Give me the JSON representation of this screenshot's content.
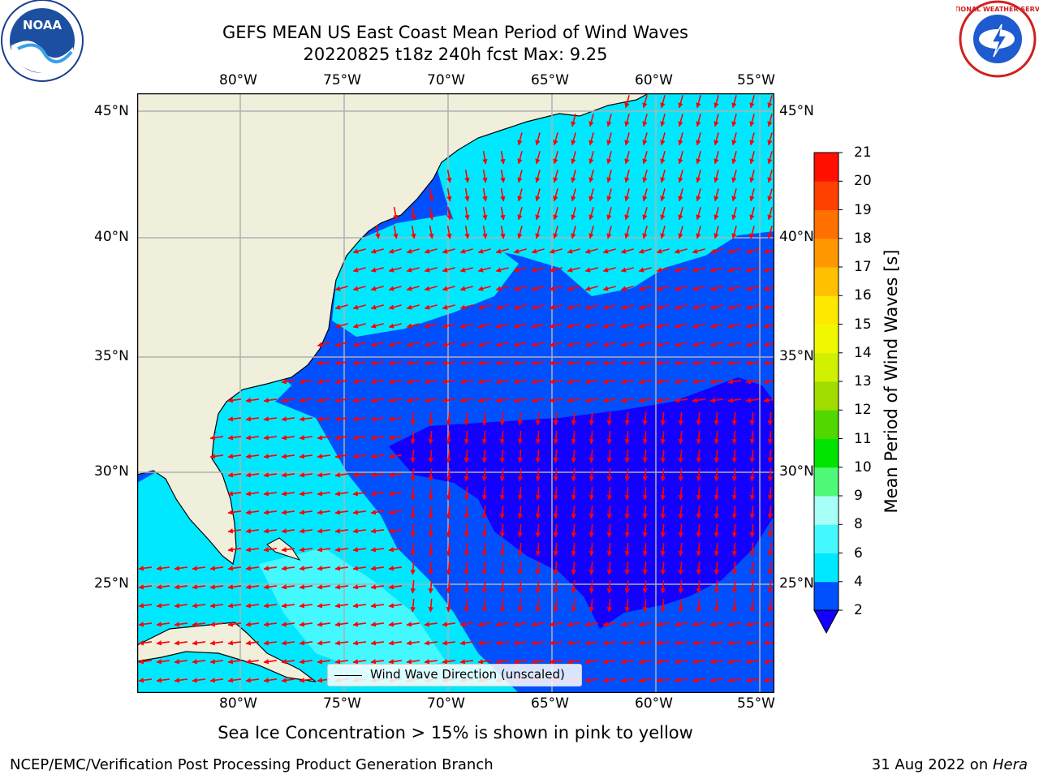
{
  "title_line1": "GEFS MEAN US East Coast Mean Period of Wind Waves",
  "title_line2": "20220825 t18z 240h fcst   Max: 9.25",
  "lon_labels": [
    "80°W",
    "75°W",
    "70°W",
    "65°W",
    "60°W",
    "55°W"
  ],
  "lat_labels": [
    "45°N",
    "40°N",
    "35°N",
    "30°N",
    "25°N"
  ],
  "legend": {
    "label": "Wind Wave Direction (unscaled)"
  },
  "colorbar": {
    "title": "Mean Period of Wind Waves [s]",
    "ticks": [
      "2",
      "4",
      "6",
      "8",
      "9",
      "10",
      "11",
      "12",
      "13",
      "14",
      "15",
      "16",
      "17",
      "18",
      "19",
      "20",
      "21"
    ],
    "colors": [
      "#0050ff",
      "#00e8ff",
      "#44f8ff",
      "#a8fff8",
      "#50f878",
      "#00e400",
      "#50d800",
      "#a0dc00",
      "#d0f000",
      "#f0f800",
      "#ffe800",
      "#ffc000",
      "#ff9800",
      "#ff7000",
      "#ff4000",
      "#ff1000"
    ],
    "extend_color": "#1400ff"
  },
  "sea_ice_note": "Sea Ice Concentration > 15% is shown in pink to yellow",
  "footer_left": "NCEP/EMC/Verification Post Processing Product Generation Branch",
  "footer_right_date": "31 Aug 2022 on ",
  "footer_right_machine": "Hera",
  "logos": {
    "left": "NOAA",
    "right": "NATIONAL WEATHER SERVICE"
  },
  "colors": {
    "land": "#efefdc",
    "arrow": "#ff0000",
    "grid": "#b0b0b0"
  }
}
